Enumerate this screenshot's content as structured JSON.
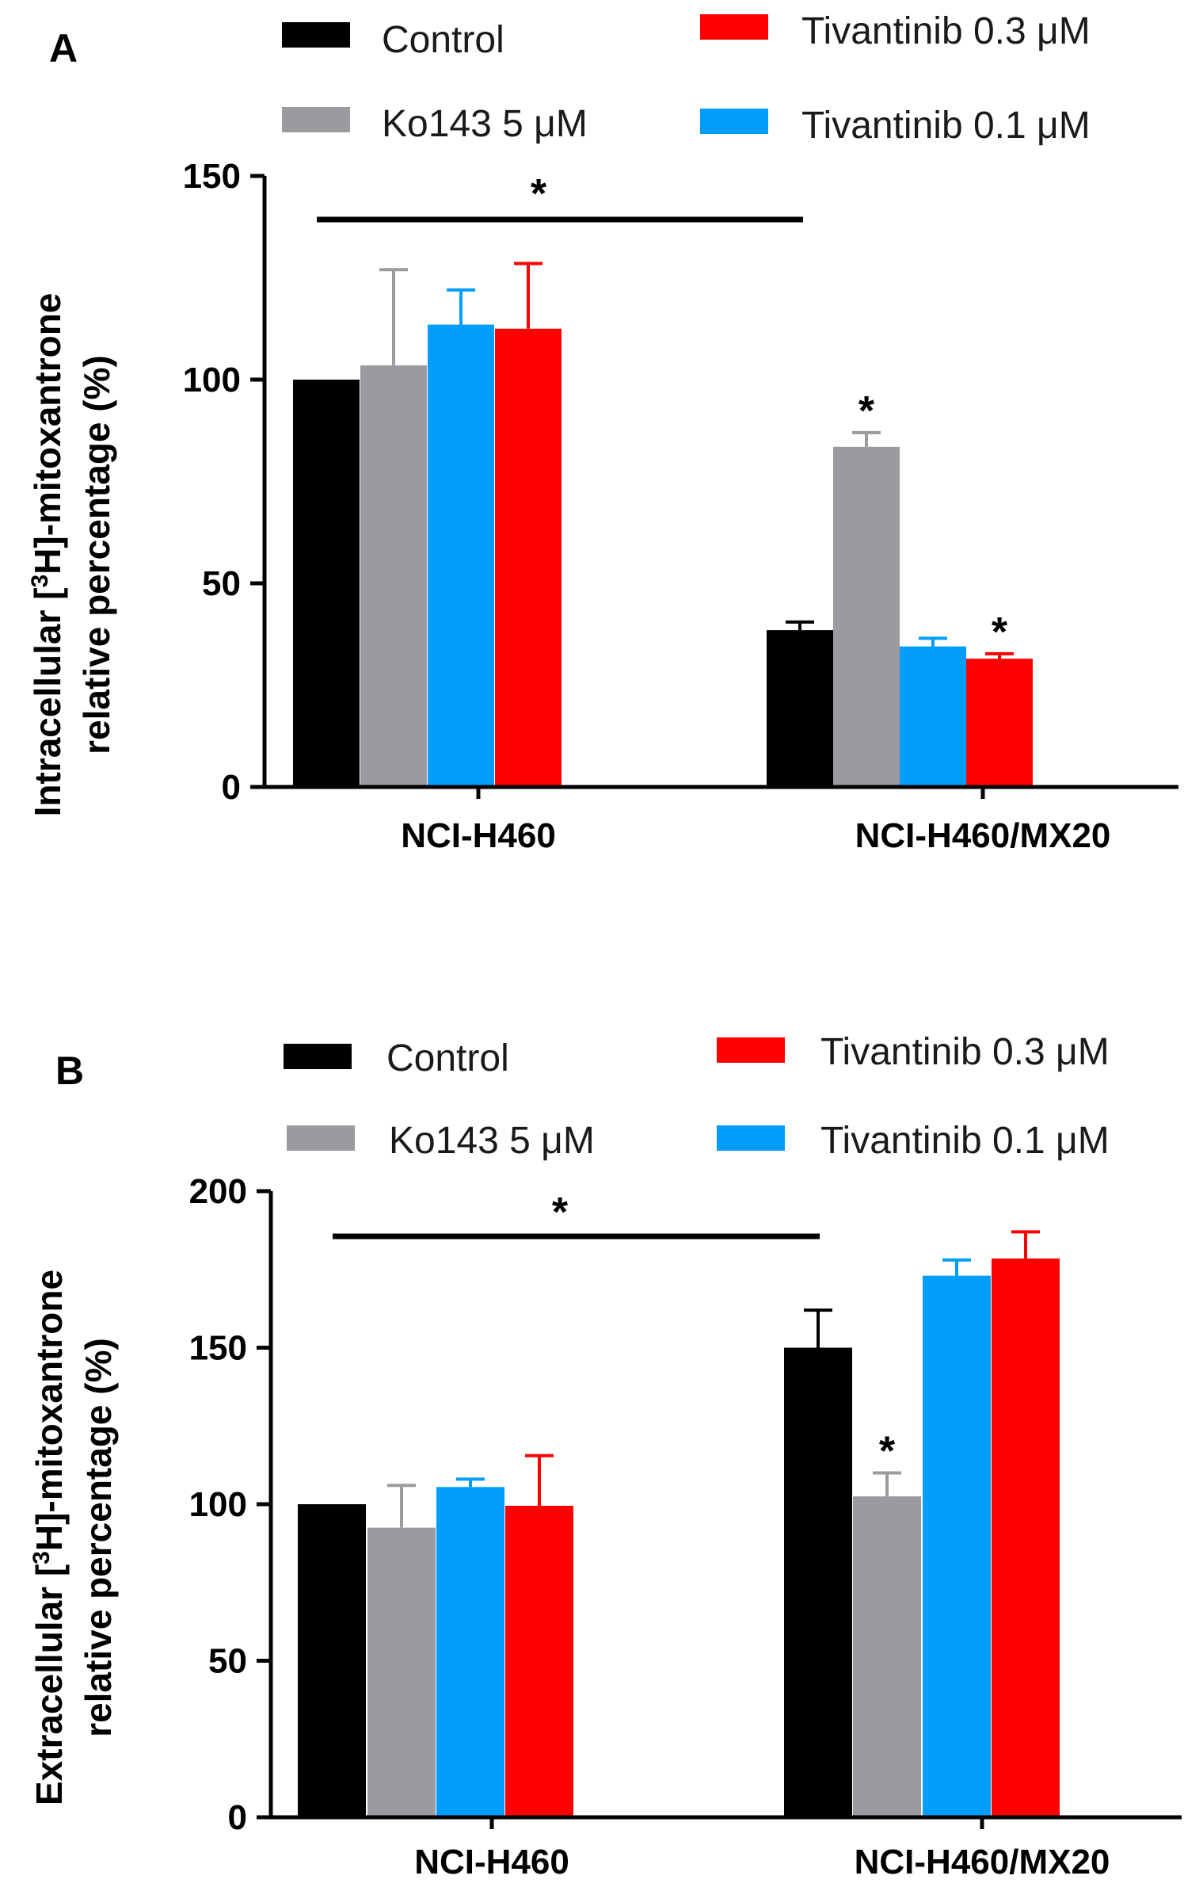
{
  "chart_data": [
    {
      "panel": "A",
      "type": "bar",
      "categories": [
        "NCI-H460",
        "NCI-H460/MX20"
      ],
      "series": [
        {
          "name": "Control",
          "color": "#000000",
          "values": [
            100,
            38.5
          ],
          "errors": [
            0,
            2
          ]
        },
        {
          "name": "Ko143  5 μM",
          "color": "#9b9a9f",
          "values": [
            103.5,
            83.5
          ],
          "errors": [
            23.5,
            3.5
          ]
        },
        {
          "name": "Tivantinib 0.1 μM",
          "color": "#009efa",
          "values": [
            113.5,
            34.5
          ],
          "errors": [
            8.5,
            2
          ]
        },
        {
          "name": "Tivantinib 0.3 μM",
          "color": "#ff0000",
          "values": [
            112.5,
            31.5
          ],
          "errors": [
            16,
            1.2
          ]
        }
      ],
      "legend_order": [
        0,
        3,
        1,
        2
      ],
      "ylabel_pre": "Intracellular [",
      "ylabel_sup": "3",
      "ylabel_post": "H]-mitoxantrone",
      "ylabel_line2": "relative percentage (%)",
      "ylim": [
        0,
        150
      ],
      "yticks": [
        0,
        50,
        100,
        150
      ],
      "significance": {
        "label": "*",
        "bracket": "NCI-H460 vs NCI-H460/MX20"
      },
      "bar_stars": [
        {
          "category": 1,
          "series": 1,
          "label": "*"
        },
        {
          "category": 1,
          "series": 3,
          "label": "*"
        }
      ]
    },
    {
      "panel": "B",
      "type": "bar",
      "categories": [
        "NCI-H460",
        "NCI-H460/MX20"
      ],
      "series": [
        {
          "name": "Control",
          "color": "#000000",
          "values": [
            100,
            150
          ],
          "errors": [
            0,
            12
          ]
        },
        {
          "name": "Ko143  5 μM",
          "color": "#9b9a9f",
          "values": [
            92.5,
            102.5
          ],
          "errors": [
            13.5,
            7.5
          ]
        },
        {
          "name": "Tivantinib 0.1 μM",
          "color": "#009efa",
          "values": [
            105.5,
            173
          ],
          "errors": [
            2.5,
            5
          ]
        },
        {
          "name": "Tivantinib 0.3 μM",
          "color": "#ff0000",
          "values": [
            99.5,
            178.5
          ],
          "errors": [
            16,
            8.5
          ]
        }
      ],
      "legend_order": [
        0,
        3,
        1,
        2
      ],
      "ylabel_pre": "Extracellular [",
      "ylabel_sup": "3",
      "ylabel_post": "H]-mitoxantrone",
      "ylabel_line2": "relative percentage (%)",
      "ylim": [
        0,
        200
      ],
      "yticks": [
        0,
        50,
        100,
        150,
        200
      ],
      "significance": {
        "label": "*",
        "bracket": "NCI-H460 vs NCI-H460/MX20"
      },
      "bar_stars": [
        {
          "category": 1,
          "series": 1,
          "label": "*"
        }
      ]
    }
  ]
}
